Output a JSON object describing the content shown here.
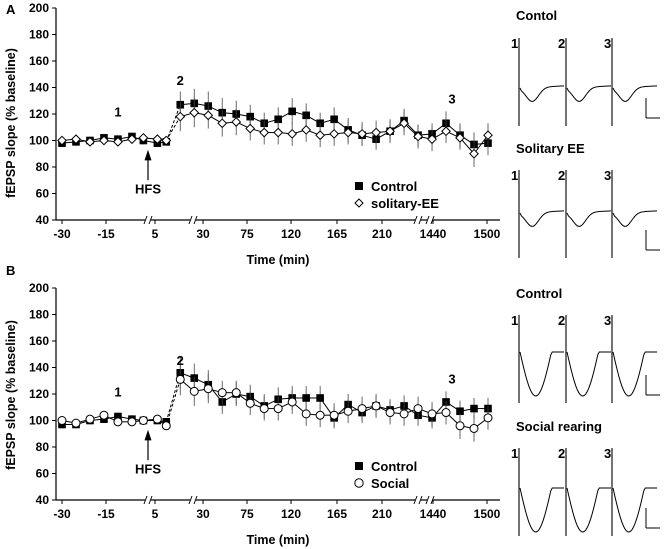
{
  "chart_data": [
    {
      "panel_label": "A",
      "type": "line",
      "ylabel": "fEPSP slope (% baseline)",
      "xlabel": "Time (min)",
      "ylim": [
        40,
        200
      ],
      "yticks": [
        "40",
        "60",
        "80",
        "100",
        "120",
        "140",
        "160",
        "180",
        "200"
      ],
      "xtick_labels": [
        "-30",
        "-15",
        "5",
        "30",
        "75",
        "120",
        "165",
        "210",
        "1440",
        "1500"
      ],
      "annotations": {
        "mark1": "1",
        "mark2": "2",
        "mark3": "3",
        "hfs": "HFS"
      },
      "series": [
        {
          "name": "Control",
          "marker": "filled-square",
          "values": [
            98,
            99,
            100,
            102,
            101,
            103,
            100,
            98,
            99,
            127,
            128,
            126,
            121,
            120,
            118,
            113,
            116,
            122,
            119,
            113,
            116,
            108,
            104,
            101,
            107,
            115,
            104,
            105,
            113,
            104,
            97,
            98
          ],
          "errors": [
            3,
            3,
            3,
            3,
            3,
            3,
            3,
            3,
            3,
            10,
            11,
            11,
            11,
            10,
            9,
            8,
            9,
            10,
            9,
            8,
            9,
            9,
            8,
            8,
            8,
            9,
            8,
            8,
            9,
            9,
            9,
            9
          ]
        },
        {
          "name": "solitary-EE",
          "marker": "open-diamond",
          "values": [
            100,
            101,
            99,
            100,
            99,
            101,
            102,
            101,
            100,
            118,
            121,
            119,
            113,
            114,
            109,
            106,
            106,
            105,
            108,
            104,
            105,
            106,
            105,
            106,
            107,
            113,
            103,
            101,
            107,
            102,
            90,
            104
          ],
          "errors": [
            3,
            3,
            3,
            3,
            3,
            3,
            3,
            3,
            3,
            11,
            11,
            10,
            10,
            10,
            9,
            9,
            9,
            9,
            9,
            9,
            9,
            9,
            9,
            9,
            9,
            9,
            9,
            9,
            9,
            9,
            10,
            9
          ]
        }
      ],
      "traces": [
        {
          "title": "Contol",
          "markers": [
            "1",
            "2",
            "3"
          ]
        },
        {
          "title": "Solitary EE",
          "markers": [
            "1",
            "2",
            "3"
          ]
        }
      ]
    },
    {
      "panel_label": "B",
      "type": "line",
      "ylabel": "fEPSP slope (% baseline)",
      "xlabel": "Time (min)",
      "ylim": [
        40,
        200
      ],
      "yticks": [
        "40",
        "60",
        "80",
        "100",
        "120",
        "140",
        "160",
        "180",
        "200"
      ],
      "xtick_labels": [
        "-30",
        "-15",
        "5",
        "30",
        "75",
        "120",
        "165",
        "210",
        "1440",
        "1500"
      ],
      "annotations": {
        "mark1": "1",
        "mark2": "2",
        "mark3": "3",
        "hfs": "HFS"
      },
      "series": [
        {
          "name": "Control",
          "marker": "filled-square",
          "values": [
            97,
            97,
            100,
            101,
            103,
            101,
            100,
            100,
            99,
            136,
            132,
            127,
            114,
            120,
            118,
            111,
            116,
            117,
            117,
            117,
            102,
            112,
            106,
            111,
            108,
            111,
            104,
            102,
            114,
            107,
            109,
            109
          ],
          "errors": [
            3,
            3,
            3,
            3,
            3,
            3,
            3,
            3,
            3,
            12,
            11,
            11,
            9,
            9,
            9,
            9,
            9,
            9,
            9,
            9,
            8,
            8,
            8,
            8,
            8,
            8,
            8,
            8,
            8,
            8,
            8,
            8
          ]
        },
        {
          "name": "Social",
          "marker": "open-circle",
          "values": [
            100,
            98,
            101,
            104,
            99,
            99,
            100,
            101,
            96,
            131,
            122,
            124,
            121,
            121,
            113,
            109,
            109,
            114,
            105,
            104,
            104,
            107,
            109,
            111,
            106,
            105,
            109,
            105,
            106,
            96,
            94,
            102
          ],
          "errors": [
            3,
            3,
            3,
            3,
            3,
            3,
            3,
            3,
            3,
            12,
            11,
            11,
            9,
            9,
            9,
            9,
            9,
            9,
            9,
            9,
            9,
            9,
            9,
            9,
            9,
            9,
            9,
            9,
            9,
            10,
            10,
            9
          ]
        }
      ],
      "traces": [
        {
          "title": "Control",
          "markers": [
            "1",
            "2",
            "3"
          ]
        },
        {
          "title": "Social rearing",
          "markers": [
            "1",
            "2",
            "3"
          ]
        }
      ]
    }
  ]
}
